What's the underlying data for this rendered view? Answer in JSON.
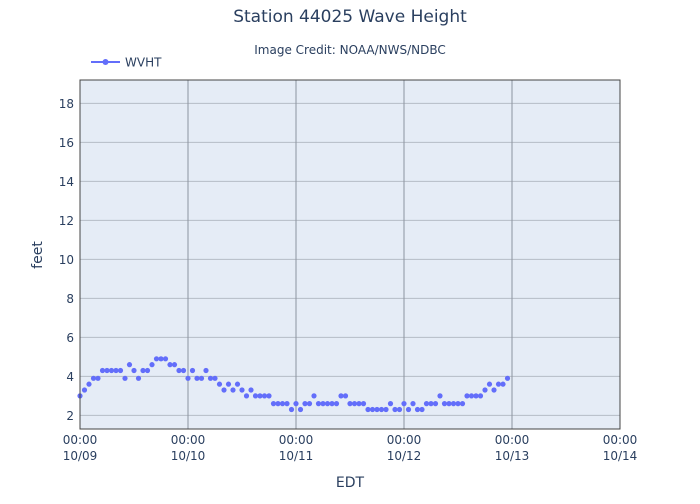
{
  "chart_data": {
    "type": "scatter",
    "title": "Station 44025 Wave Height",
    "subtitle": "Image Credit: NOAA/NWS/NDBC",
    "xlabel": "EDT",
    "ylabel": "feet",
    "xlim": [
      "2023-10-09 00:00",
      "2023-10-14 00:00"
    ],
    "ylim": [
      1.3,
      19.2
    ],
    "x_ticks": [
      {
        "time": "00:00",
        "date": "10/09"
      },
      {
        "time": "00:00",
        "date": "10/10"
      },
      {
        "time": "00:00",
        "date": "10/11"
      },
      {
        "time": "00:00",
        "date": "10/12"
      },
      {
        "time": "00:00",
        "date": "10/13"
      },
      {
        "time": "00:00",
        "date": "10/14"
      }
    ],
    "y_ticks": [
      2,
      4,
      6,
      8,
      10,
      12,
      14,
      16,
      18
    ],
    "legend": {
      "position": "top-left"
    },
    "grid": true,
    "colors": {
      "series": "#636efa",
      "plot_bg": "#e5ecf6",
      "vgrid": "#8c94a0",
      "hgrid": "#b5bcc6"
    },
    "series": [
      {
        "name": "WVHT",
        "mode": "lines+markers",
        "points": [
          [
            "10/09 00:00",
            3.0
          ],
          [
            "10/09 01:00",
            3.3
          ],
          [
            "10/09 02:00",
            3.6
          ],
          [
            "10/09 03:00",
            3.9
          ],
          [
            "10/09 04:00",
            3.9
          ],
          [
            "10/09 05:00",
            4.3
          ],
          [
            "10/09 06:00",
            4.3
          ],
          [
            "10/09 07:00",
            4.3
          ],
          [
            "10/09 08:00",
            4.3
          ],
          [
            "10/09 09:00",
            4.3
          ],
          [
            "10/09 10:00",
            3.9
          ],
          [
            "10/09 11:00",
            4.6
          ],
          [
            "10/09 12:00",
            4.3
          ],
          [
            "10/09 13:00",
            3.9
          ],
          [
            "10/09 14:00",
            4.3
          ],
          [
            "10/09 15:00",
            4.3
          ],
          [
            "10/09 16:00",
            4.6
          ],
          [
            "10/09 17:00",
            4.9
          ],
          [
            "10/09 18:00",
            4.9
          ],
          [
            "10/09 19:00",
            4.9
          ],
          [
            "10/09 20:00",
            4.6
          ],
          [
            "10/09 21:00",
            4.6
          ],
          [
            "10/09 22:00",
            4.3
          ],
          [
            "10/09 23:00",
            4.3
          ],
          [
            "10/10 00:00",
            3.9
          ],
          [
            "10/10 01:00",
            4.3
          ],
          [
            "10/10 02:00",
            3.9
          ],
          [
            "10/10 03:00",
            3.9
          ],
          [
            "10/10 04:00",
            4.3
          ],
          [
            "10/10 05:00",
            3.9
          ],
          [
            "10/10 06:00",
            3.9
          ],
          [
            "10/10 07:00",
            3.6
          ],
          [
            "10/10 08:00",
            3.3
          ],
          [
            "10/10 09:00",
            3.6
          ],
          [
            "10/10 10:00",
            3.3
          ],
          [
            "10/10 11:00",
            3.6
          ],
          [
            "10/10 12:00",
            3.3
          ],
          [
            "10/10 13:00",
            3.0
          ],
          [
            "10/10 14:00",
            3.3
          ],
          [
            "10/10 15:00",
            3.0
          ],
          [
            "10/10 16:00",
            3.0
          ],
          [
            "10/10 17:00",
            3.0
          ],
          [
            "10/10 18:00",
            3.0
          ],
          [
            "10/10 19:00",
            2.6
          ],
          [
            "10/10 20:00",
            2.6
          ],
          [
            "10/10 21:00",
            2.6
          ],
          [
            "10/10 22:00",
            2.6
          ],
          [
            "10/10 23:00",
            2.3
          ],
          [
            "10/11 00:00",
            2.6
          ],
          [
            "10/11 01:00",
            2.3
          ],
          [
            "10/11 02:00",
            2.6
          ],
          [
            "10/11 03:00",
            2.6
          ],
          [
            "10/11 04:00",
            3.0
          ],
          [
            "10/11 05:00",
            2.6
          ],
          [
            "10/11 06:00",
            2.6
          ],
          [
            "10/11 07:00",
            2.6
          ],
          [
            "10/11 08:00",
            2.6
          ],
          [
            "10/11 09:00",
            2.6
          ],
          [
            "10/11 10:00",
            3.0
          ],
          [
            "10/11 11:00",
            3.0
          ],
          [
            "10/11 12:00",
            2.6
          ],
          [
            "10/11 13:00",
            2.6
          ],
          [
            "10/11 14:00",
            2.6
          ],
          [
            "10/11 15:00",
            2.6
          ],
          [
            "10/11 16:00",
            2.3
          ],
          [
            "10/11 17:00",
            2.3
          ],
          [
            "10/11 18:00",
            2.3
          ],
          [
            "10/11 19:00",
            2.3
          ],
          [
            "10/11 20:00",
            2.3
          ],
          [
            "10/11 21:00",
            2.6
          ],
          [
            "10/11 22:00",
            2.3
          ],
          [
            "10/11 23:00",
            2.3
          ],
          [
            "10/12 00:00",
            2.6
          ],
          [
            "10/12 01:00",
            2.3
          ],
          [
            "10/12 02:00",
            2.6
          ],
          [
            "10/12 03:00",
            2.3
          ],
          [
            "10/12 04:00",
            2.3
          ],
          [
            "10/12 05:00",
            2.6
          ],
          [
            "10/12 06:00",
            2.6
          ],
          [
            "10/12 07:00",
            2.6
          ],
          [
            "10/12 08:00",
            3.0
          ],
          [
            "10/12 09:00",
            2.6
          ],
          [
            "10/12 10:00",
            2.6
          ],
          [
            "10/12 11:00",
            2.6
          ],
          [
            "10/12 12:00",
            2.6
          ],
          [
            "10/12 13:00",
            2.6
          ],
          [
            "10/12 14:00",
            3.0
          ],
          [
            "10/12 15:00",
            3.0
          ],
          [
            "10/12 16:00",
            3.0
          ],
          [
            "10/12 17:00",
            3.0
          ],
          [
            "10/12 18:00",
            3.3
          ],
          [
            "10/12 19:00",
            3.6
          ],
          [
            "10/12 20:00",
            3.3
          ],
          [
            "10/12 21:00",
            3.6
          ],
          [
            "10/12 22:00",
            3.6
          ],
          [
            "10/12 23:00",
            3.9
          ]
        ]
      }
    ]
  }
}
